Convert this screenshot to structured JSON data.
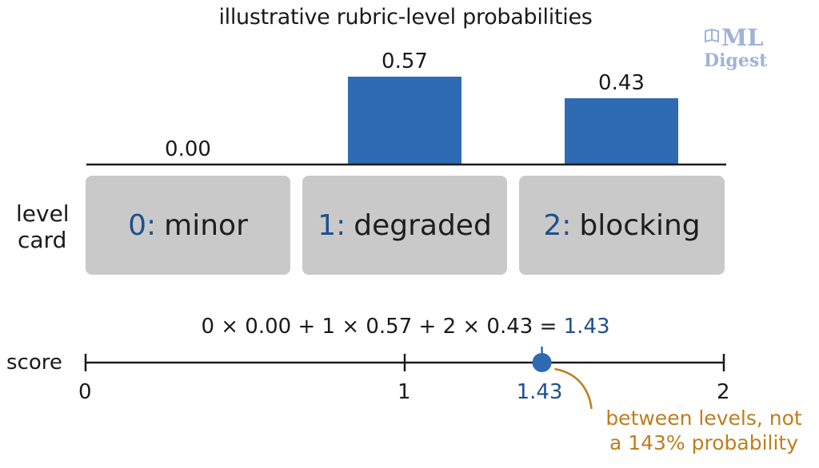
{
  "chart_data": {
    "type": "bar",
    "title": "illustrative rubric-level probabilities",
    "categories": [
      "0",
      "1",
      "2"
    ],
    "values": [
      0.0,
      0.57,
      0.43
    ],
    "value_labels": [
      "0.00",
      "0.57",
      "0.43"
    ],
    "ylim": [
      0,
      0.57
    ],
    "bar_color": "#2e6bb3",
    "level_card": {
      "label": "level\ncard",
      "cards": [
        {
          "num": "0:",
          "name": "minor"
        },
        {
          "num": "1:",
          "name": "degraded"
        },
        {
          "num": "2:",
          "name": "blocking"
        }
      ]
    },
    "score": {
      "formula": "0 × 0.00 + 1 × 0.57 + 2 × 0.43 =",
      "result": "1.43",
      "axis_label": "score",
      "ticks": [
        "0",
        "1",
        "2"
      ],
      "range": [
        0,
        2
      ],
      "value": 1.43,
      "marker_label": "1.43",
      "annotation_line1": "between levels, not",
      "annotation_line2": "a 143% probability"
    }
  },
  "logo": {
    "line1": "ML",
    "line2": "Digest"
  },
  "colors": {
    "accent": "#1f4f8f",
    "bar": "#2e6bb3",
    "annotation": "#c07d1c",
    "card_bg": "#c9c9c9"
  }
}
